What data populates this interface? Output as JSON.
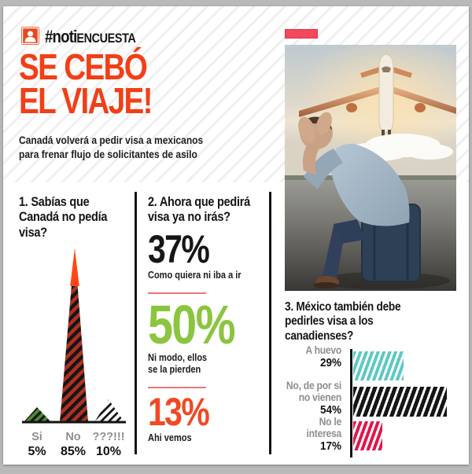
{
  "brand": {
    "icon": "person-icon",
    "hash_label": "#noti",
    "caps_label": "ENCUESTA"
  },
  "header": {
    "title_lines": [
      "SE CEBÓ",
      "EL VIAJE!"
    ],
    "subtitle_lines": [
      "Canadá volverá a pedir visa a mexicanos",
      "para frenar flujo de solicitantes de asilo"
    ]
  },
  "photo": {
    "description": "hombre sentado sobre una maleta con la cabeza entre las manos mientras un avión despega"
  },
  "q1": {
    "title_lines": [
      "1. Sabías que",
      "Canadá no pedía",
      "visa?"
    ],
    "options": [
      {
        "label": "Si",
        "pct": "5%"
      },
      {
        "label": "No",
        "pct": "85%"
      },
      {
        "label": "???!!!",
        "pct": "10%"
      }
    ]
  },
  "q2": {
    "title_lines": [
      "2. Ahora que pedirá",
      "visa ya no irás?"
    ],
    "items": [
      {
        "pct": "37%",
        "lines": [
          "Como quiera ni iba a ir"
        ]
      },
      {
        "pct": "50%",
        "lines": [
          "Ni modo, ellos",
          "se la pierden"
        ]
      },
      {
        "pct": "13%",
        "lines": [
          "Ahi vemos"
        ]
      }
    ]
  },
  "q3": {
    "title_lines": [
      "3. México también debe",
      "pedirles visa a los",
      "canadienses?"
    ],
    "bars": [
      {
        "lines": [
          "A huevo",
          ""
        ],
        "pct": "29%"
      },
      {
        "lines": [
          "No, de por si",
          "no vienen"
        ],
        "pct": "54%"
      },
      {
        "lines": [
          "No le",
          "interesa"
        ],
        "pct": "17%"
      }
    ]
  },
  "colors": {
    "headline_orange": "#f13f17",
    "logo_red": "#e8481e",
    "flag_pink": "#f4485c",
    "green": "#8bc53f",
    "orange": "#f04a23",
    "teal": "#5ec8c4",
    "crimson": "#e0174e",
    "triangle_red": "#b03124",
    "triangle_green": "#4c8a38",
    "gray_label": "#8e8e8e"
  },
  "chart_data": [
    {
      "type": "bar",
      "style": "triangle-spikes",
      "title": "1. Sabías que Canadá no pedía visa?",
      "categories": [
        "Si",
        "No",
        "???!!!"
      ],
      "values": [
        5,
        85,
        10
      ],
      "unit": "%",
      "colors": [
        "#4c8a38",
        "#b03124",
        "#ffffff"
      ],
      "ylim": [
        0,
        85
      ],
      "grid": false,
      "legend": "none"
    },
    {
      "type": "table",
      "style": "big-number-list",
      "title": "2. Ahora que pedirá visa ya no irás?",
      "categories": [
        "Como quiera ni iba a ir",
        "Ni modo, ellos se la pierden",
        "Ahi vemos"
      ],
      "values": [
        37,
        50,
        13
      ],
      "unit": "%",
      "colors": [
        "#161616",
        "#8bc53f",
        "#f04a23"
      ]
    },
    {
      "type": "bar",
      "orientation": "horizontal",
      "style": "diagonal-stripes",
      "title": "3. México también debe pedirles visa a los canadienses?",
      "categories": [
        "A huevo",
        "No, de por si no vienen",
        "No le interesa"
      ],
      "values": [
        29,
        54,
        17
      ],
      "unit": "%",
      "colors": [
        "#5ec8c4",
        "#161616",
        "#e0174e"
      ],
      "xlim": [
        0,
        60
      ],
      "grid": false,
      "legend": "none"
    }
  ]
}
